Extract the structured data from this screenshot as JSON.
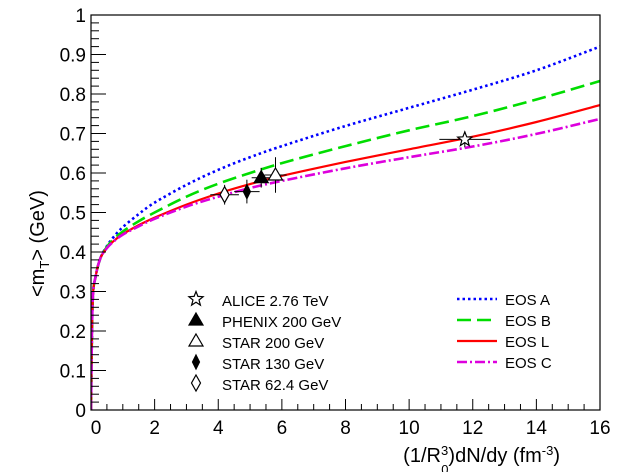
{
  "chart_data": {
    "type": "scatter",
    "xlabel": {
      "pre": "(1/R",
      "sup1": "3",
      "sub1": "0",
      "mid": ")dN/dy (fm",
      "sup2": "-3",
      "post": ")"
    },
    "ylabel": {
      "pre": "<m",
      "sub": "T",
      "post": "> (GeV)"
    },
    "xlim": [
      0,
      16
    ],
    "ylim": [
      0,
      1
    ],
    "x_ticks": [
      0,
      2,
      4,
      6,
      8,
      10,
      12,
      14,
      16
    ],
    "y_ticks": [
      0,
      0.1,
      0.2,
      0.3,
      0.4,
      0.5,
      0.6,
      0.7,
      0.8,
      0.9,
      1
    ],
    "grid": false,
    "legend_placement": "bottom",
    "points": [
      {
        "name": "ALICE 2.76 TeV",
        "marker": "open-star",
        "x": 11.75,
        "y": 0.685,
        "xerr": 0.8,
        "yerr": 0.02
      },
      {
        "name": "PHENIX 200 GeV",
        "marker": "filled-triangle",
        "x": 5.35,
        "y": 0.588,
        "xerr": 0.3,
        "yerr": 0.025
      },
      {
        "name": "STAR 200 GeV",
        "marker": "open-triangle",
        "x": 5.8,
        "y": 0.595,
        "xerr": 0.35,
        "yerr": 0.045
      },
      {
        "name": "STAR 130 GeV",
        "marker": "filled-diamond",
        "x": 4.9,
        "y": 0.553,
        "xerr": 0.4,
        "yerr": 0.03
      },
      {
        "name": "STAR 62.4 GeV",
        "marker": "open-diamond",
        "x": 4.2,
        "y": 0.545,
        "xerr": 0.45,
        "yerr": 0.025
      }
    ],
    "curves": [
      {
        "name": "EOS A",
        "color": "#0000ff",
        "style": "dotted",
        "x": [
          0,
          0.05,
          0.15,
          0.3,
          0.5,
          0.7,
          1,
          1.5,
          2,
          3,
          4,
          5,
          6,
          8,
          10,
          12,
          14,
          16
        ],
        "y": [
          0,
          0.27,
          0.34,
          0.385,
          0.415,
          0.437,
          0.463,
          0.496,
          0.525,
          0.57,
          0.608,
          0.64,
          0.668,
          0.719,
          0.765,
          0.811,
          0.86,
          0.92
        ]
      },
      {
        "name": "EOS B",
        "color": "#00dd00",
        "style": "dashed",
        "x": [
          0,
          0.05,
          0.15,
          0.3,
          0.5,
          0.7,
          1,
          1.5,
          2,
          3,
          4,
          5,
          6,
          8,
          10,
          12,
          14,
          16
        ],
        "y": [
          0,
          0.27,
          0.34,
          0.385,
          0.413,
          0.432,
          0.452,
          0.478,
          0.5,
          0.54,
          0.573,
          0.6,
          0.625,
          0.668,
          0.708,
          0.744,
          0.786,
          0.833
        ]
      },
      {
        "name": "EOS L",
        "color": "#ff0000",
        "style": "solid",
        "x": [
          0,
          0.05,
          0.15,
          0.3,
          0.5,
          0.7,
          1,
          1.5,
          2,
          3,
          4,
          5,
          6,
          8,
          10,
          12,
          14,
          16
        ],
        "y": [
          0,
          0.27,
          0.34,
          0.385,
          0.41,
          0.427,
          0.445,
          0.468,
          0.487,
          0.52,
          0.548,
          0.572,
          0.593,
          0.628,
          0.66,
          0.692,
          0.729,
          0.772
        ]
      },
      {
        "name": "EOS C",
        "color": "#dd00dd",
        "style": "dashdot",
        "x": [
          0,
          0.05,
          0.15,
          0.3,
          0.5,
          0.7,
          1,
          1.5,
          2,
          3,
          4,
          5,
          6,
          8,
          10,
          12,
          14,
          16
        ],
        "y": [
          0,
          0.27,
          0.34,
          0.385,
          0.41,
          0.426,
          0.444,
          0.465,
          0.484,
          0.515,
          0.54,
          0.562,
          0.58,
          0.612,
          0.64,
          0.667,
          0.699,
          0.737
        ]
      }
    ]
  }
}
